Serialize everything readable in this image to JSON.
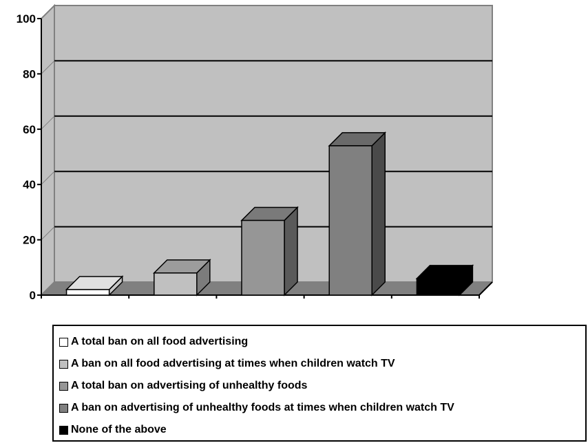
{
  "chart_data": {
    "type": "bar",
    "categories": [
      "A total ban on all food advertising",
      "A ban on all food advertising at times when children watch TV",
      "A total ban on advertising of unhealthy foods",
      "A ban on advertising of unhealthy foods at times when children watch TV",
      "None of the above"
    ],
    "values": [
      2,
      8,
      27,
      54,
      6
    ],
    "colors": [
      "#ffffff",
      "#c0c0c0",
      "#969696",
      "#808080",
      "#000000"
    ],
    "side_colors": [
      "#c8c8c8",
      "#7c7c7c",
      "#5a5a5a",
      "#4a4a4a",
      "#000000"
    ],
    "top_colors": [
      "#e0e0e0",
      "#9c9c9c",
      "#7a7a7a",
      "#6a6a6a",
      "#000000"
    ],
    "y_ticks": [
      "0",
      "20",
      "40",
      "60",
      "80",
      "100"
    ],
    "ylim": [
      0,
      100
    ],
    "grid": true,
    "legend_position": "bottom",
    "plot_background": "#c0c0c0",
    "floor_color": "#808080",
    "gridline_color": "#000000"
  }
}
